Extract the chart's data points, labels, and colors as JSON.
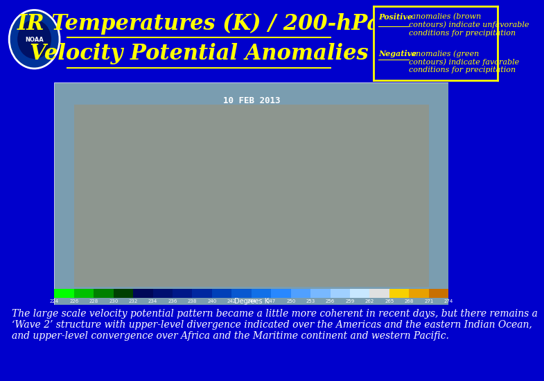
{
  "background_color": "#0000cc",
  "title_line1": "IR Temperatures (K) / 200-hPa",
  "title_line2": "Velocity Potential Anomalies",
  "title_color": "#ffff00",
  "title_fontsize": 22,
  "legend_border_color": "#ffff00",
  "legend_text_color": "#ffff00",
  "legend_fontsize": 8,
  "positive_underline": "Positive",
  "positive_rest": " anomalies (brown\ncontours) indicate unfavorable\nconditions for precipitation",
  "negative_underline": "Negative",
  "negative_rest": " anomalies (green\ncontours) indicate favorable\nconditions for precipitation",
  "body_text_line1": "The large scale velocity potential pattern became a little more coherent in recent days, but there remains a",
  "body_text_line2": "‘Wave 2’ structure with upper-level divergence indicated over the Americas and the eastern Indian Ocean,",
  "body_text_line3": "and upper-level convergence over Africa and the Maritime continent and western Pacific.",
  "body_text_color": "#ffffff",
  "body_fontsize": 10,
  "date_text": "10 FEB 2013",
  "colorbar_values": [
    "224",
    "226",
    "228",
    "230",
    "232",
    "234",
    "236",
    "238",
    "240",
    "242",
    "244",
    "247",
    "250",
    "253",
    "256",
    "259",
    "262",
    "265",
    "268",
    "271",
    "274"
  ],
  "colorbar_label": "Degrees K",
  "colorbar_colors": [
    "#00ff00",
    "#00c000",
    "#008000",
    "#004000",
    "#000858",
    "#001070",
    "#001888",
    "#0028a0",
    "#0040b8",
    "#0858d0",
    "#1070e8",
    "#2888ff",
    "#50a0ff",
    "#78b8ff",
    "#a0d0ff",
    "#c8e8ff",
    "#e0e0e0",
    "#f8d000",
    "#e8a000",
    "#c87000"
  ],
  "map_facecolor": "#6b8ea8"
}
